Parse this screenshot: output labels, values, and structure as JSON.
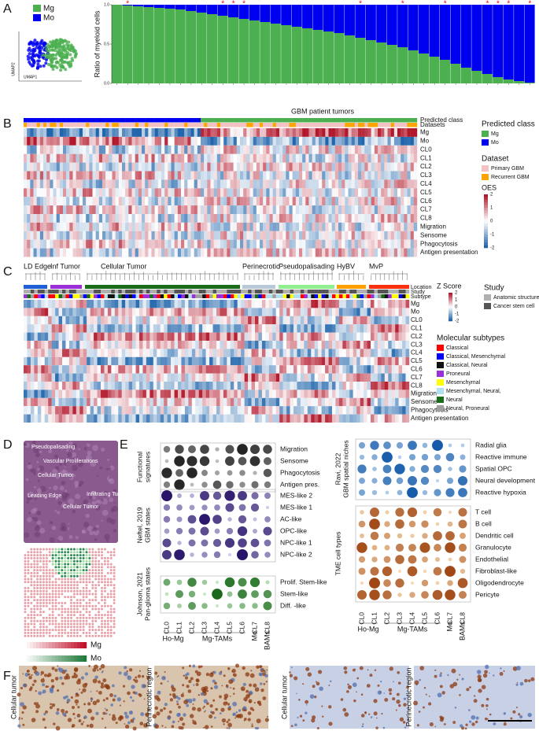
{
  "chart_data": {
    "type": "bar",
    "stacked": true,
    "ylabel": "Ratio of myeloid cells",
    "xlabel": "GBM patient tumors",
    "categories": [
      null,
      null,
      null,
      null,
      null,
      null,
      null,
      null,
      null,
      null,
      null,
      null,
      null,
      null,
      null,
      null,
      null,
      null,
      null,
      null,
      null,
      null,
      null,
      null,
      null,
      null,
      null,
      null,
      null,
      null,
      null,
      null,
      null,
      null,
      null,
      null,
      null,
      null,
      null,
      null
    ],
    "series": [
      {
        "name": "Mg",
        "color": "#4caf50",
        "values": [
          1,
          0.99,
          0.98,
          0.97,
          0.96,
          0.95,
          0.94,
          0.92,
          0.9,
          0.88,
          0.86,
          0.84,
          0.82,
          0.8,
          0.78,
          0.76,
          0.74,
          0.72,
          0.7,
          0.68,
          0.66,
          0.64,
          0.61,
          0.58,
          0.55,
          0.52,
          0.49,
          0.46,
          0.42,
          0.38,
          0.34,
          0.3,
          0.25,
          0.2,
          0.16,
          0.12,
          0.08,
          0.05,
          0.03,
          0.01
        ]
      },
      {
        "name": "Mo",
        "color": "#0000f0",
        "values": [
          0,
          0.01,
          0.02,
          0.03,
          0.04,
          0.05,
          0.06,
          0.08,
          0.1,
          0.12,
          0.14,
          0.16,
          0.18,
          0.2,
          0.22,
          0.24,
          0.26,
          0.28,
          0.3,
          0.32,
          0.34,
          0.36,
          0.39,
          0.42,
          0.45,
          0.48,
          0.51,
          0.54,
          0.58,
          0.62,
          0.66,
          0.7,
          0.75,
          0.8,
          0.84,
          0.88,
          0.92,
          0.95,
          0.97,
          0.99
        ]
      }
    ],
    "ylim": [
      0,
      1
    ],
    "yticks": [
      {
        "value": 0,
        "label": "0.0"
      },
      {
        "value": 0.5,
        "label": "0.5"
      },
      {
        "value": 1,
        "label": "1.0"
      }
    ],
    "annotations": [
      {
        "text": "*",
        "index": 1
      },
      {
        "text": "*",
        "index": 10
      },
      {
        "text": "*",
        "index": 11
      },
      {
        "text": "*",
        "index": 12
      },
      {
        "text": "*",
        "index": 23
      },
      {
        "text": "*",
        "index": 27
      },
      {
        "text": "*",
        "index": 31
      },
      {
        "text": "*",
        "index": 35
      },
      {
        "text": "*",
        "index": 36
      },
      {
        "text": "*",
        "index": 37
      },
      {
        "text": "*",
        "index": 39
      }
    ]
  },
  "panel_labels": [
    "A",
    "B",
    "C",
    "D",
    "E",
    "F"
  ],
  "panel_a": {
    "umap_x": "UMAP1",
    "umap_y": "UMAP2"
  },
  "panel_b": {
    "rows": [
      "Predicted class",
      "Datasets",
      "Mg",
      "Mo",
      "CL0",
      "CL1",
      "CL2",
      "CL3",
      "CL4",
      "CL5",
      "CL6",
      "CL7",
      "CL8",
      "Migration",
      "Sensome",
      "Phagocytosis",
      "Antigen presentation"
    ],
    "predicted_class": {
      "title": "Predicted class",
      "items": [
        {
          "name": "Mg",
          "color": "#4caf50"
        },
        {
          "name": "Mo",
          "color": "#0000f0"
        }
      ]
    },
    "dataset": {
      "title": "Dataset",
      "items": [
        {
          "name": "Primary GBM",
          "color": "#f4c2c2"
        },
        {
          "name": "Recurrent GBM",
          "color": "#ffa500"
        }
      ]
    },
    "scale": {
      "title": "OES",
      "ticks": [
        "2",
        "1",
        "0",
        "-1",
        "-2"
      ]
    }
  },
  "panel_c": {
    "groups": [
      {
        "name": "LD Edge",
        "color": "#1f5fd6"
      },
      {
        "name": "Inf Tumor",
        "color": "#9b30d9"
      },
      {
        "name": "Cellular Tumor",
        "color": "#1a6b1a"
      },
      {
        "name": "Perinecrotic",
        "color": "#b8c8d8"
      },
      {
        "name": "Pseudopalisading",
        "color": "#90ee90"
      },
      {
        "name": "HyBV",
        "color": "#ffa000"
      },
      {
        "name": "MvP",
        "color": "#ff3010"
      }
    ],
    "rows": [
      "Location",
      "Study",
      "Subtype",
      "Mg",
      "Mo",
      "CL0",
      "CL1",
      "CL2",
      "CL3",
      "CL4",
      "CL5",
      "CL6",
      "CL7",
      "CL8",
      "Migration",
      "Sensome",
      "Phagocytosis",
      "Antigen presentation"
    ],
    "scale": {
      "title": "Z Score",
      "ticks": [
        "2",
        "1",
        "0",
        "-1",
        "-2"
      ]
    },
    "study": {
      "title": "Study",
      "items": [
        {
          "name": "Anatomic structure",
          "color": "#b0b0b0"
        },
        {
          "name": "Cancer stem cell",
          "color": "#555555"
        }
      ]
    },
    "subtypes": {
      "title": "Molecular subtypes",
      "items": [
        {
          "name": "Classical",
          "color": "#ff0000"
        },
        {
          "name": "Classical, Mesenchymal",
          "color": "#0000ff"
        },
        {
          "name": "Classical, Neural",
          "color": "#111111"
        },
        {
          "name": "Proneural",
          "color": "#9b30d9"
        },
        {
          "name": "Mesenchymal",
          "color": "#ffff00"
        },
        {
          "name": "Mesenchymal, Neural,",
          "color": "#b0e0f0"
        },
        {
          "name": "Neural",
          "color": "#1a6b1a"
        },
        {
          "name": "Neural, Proneural",
          "color": "#a0a0a0"
        }
      ]
    }
  },
  "panel_d": {
    "regions": [
      "Pseudopalisading",
      "Vascular Proliferations",
      "Cellular Tumor",
      "Leading Edge",
      "Infiltrating Tumor",
      "Cellular Tumor"
    ],
    "legend": [
      "Mg",
      "Mo"
    ]
  },
  "panel_e": {
    "columns": [
      "CL0",
      "CL1",
      "CL2",
      "CL3",
      "CL4",
      "CL5",
      "CL6",
      "CL7",
      "CL8"
    ],
    "column_groups": [
      "Ho-Mg",
      "Mg-TAMs",
      "Mo",
      "BAMs"
    ],
    "left_blocks": [
      {
        "title": [
          "Functional",
          "signatures"
        ],
        "rows": [
          "Migration",
          "Sensome",
          "Phagocytosis",
          "Antigen pres."
        ]
      },
      {
        "title": [
          "Neftel, 2019",
          "GBM states"
        ],
        "rows": [
          "MES-like 2",
          "MES-like 1",
          "AC-like",
          "OPC-like",
          "NPC-like 1",
          "NPC-like 2"
        ]
      },
      {
        "title": [
          "Johnson, 2021",
          "Pan-glioma states"
        ],
        "rows": [
          "Prolif. Stem-like",
          "Stem-like",
          "Diff. -like"
        ]
      }
    ],
    "right_blocks": [
      {
        "title": [
          "Ravi, 2022",
          "GBM spatial niches"
        ],
        "rows": [
          "Radial glia",
          "Reactive immune",
          "Spatial OPC",
          "Neural development",
          "Reactive hypoxia"
        ]
      },
      {
        "title": [
          "TME cell types"
        ],
        "rows": [
          "T cell",
          "B cell",
          "Dendritic cell",
          "Granulocyte",
          "Endothelial",
          "Fibroblast-like",
          "Oligodendrocyte",
          "Pericyte"
        ]
      }
    ]
  },
  "panel_f": {
    "labels": [
      "Cellular tumor",
      "Perinecrotic region",
      "Cellular tumor",
      "Perinecrotic region"
    ]
  }
}
